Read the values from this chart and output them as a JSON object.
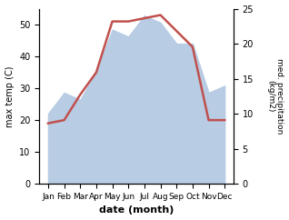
{
  "months": [
    "Jan",
    "Feb",
    "Mar",
    "Apr",
    "May",
    "Jun",
    "Jul",
    "Aug",
    "Sep",
    "Oct",
    "Nov",
    "Dec"
  ],
  "max_temp": [
    19,
    20,
    28,
    35,
    51,
    51,
    52,
    53,
    48,
    43,
    20,
    20
  ],
  "precipitation": [
    10,
    13,
    12,
    16,
    22,
    21,
    24,
    23,
    20,
    20,
    13,
    14
  ],
  "temp_color": "#c0504d",
  "precip_fill_color": "#b8cce4",
  "precip_edge_color": "#9dc3e6",
  "ylabel_left": "max temp (C)",
  "ylabel_right": "med. precipitation\n(kg/m2)",
  "xlabel": "date (month)",
  "ylim_left": [
    0,
    55
  ],
  "ylim_right": [
    0,
    25
  ],
  "yticks_left": [
    0,
    10,
    20,
    30,
    40,
    50
  ],
  "yticks_right": [
    0,
    5,
    10,
    15,
    20,
    25
  ],
  "figsize": [
    3.18,
    2.42
  ],
  "dpi": 100
}
